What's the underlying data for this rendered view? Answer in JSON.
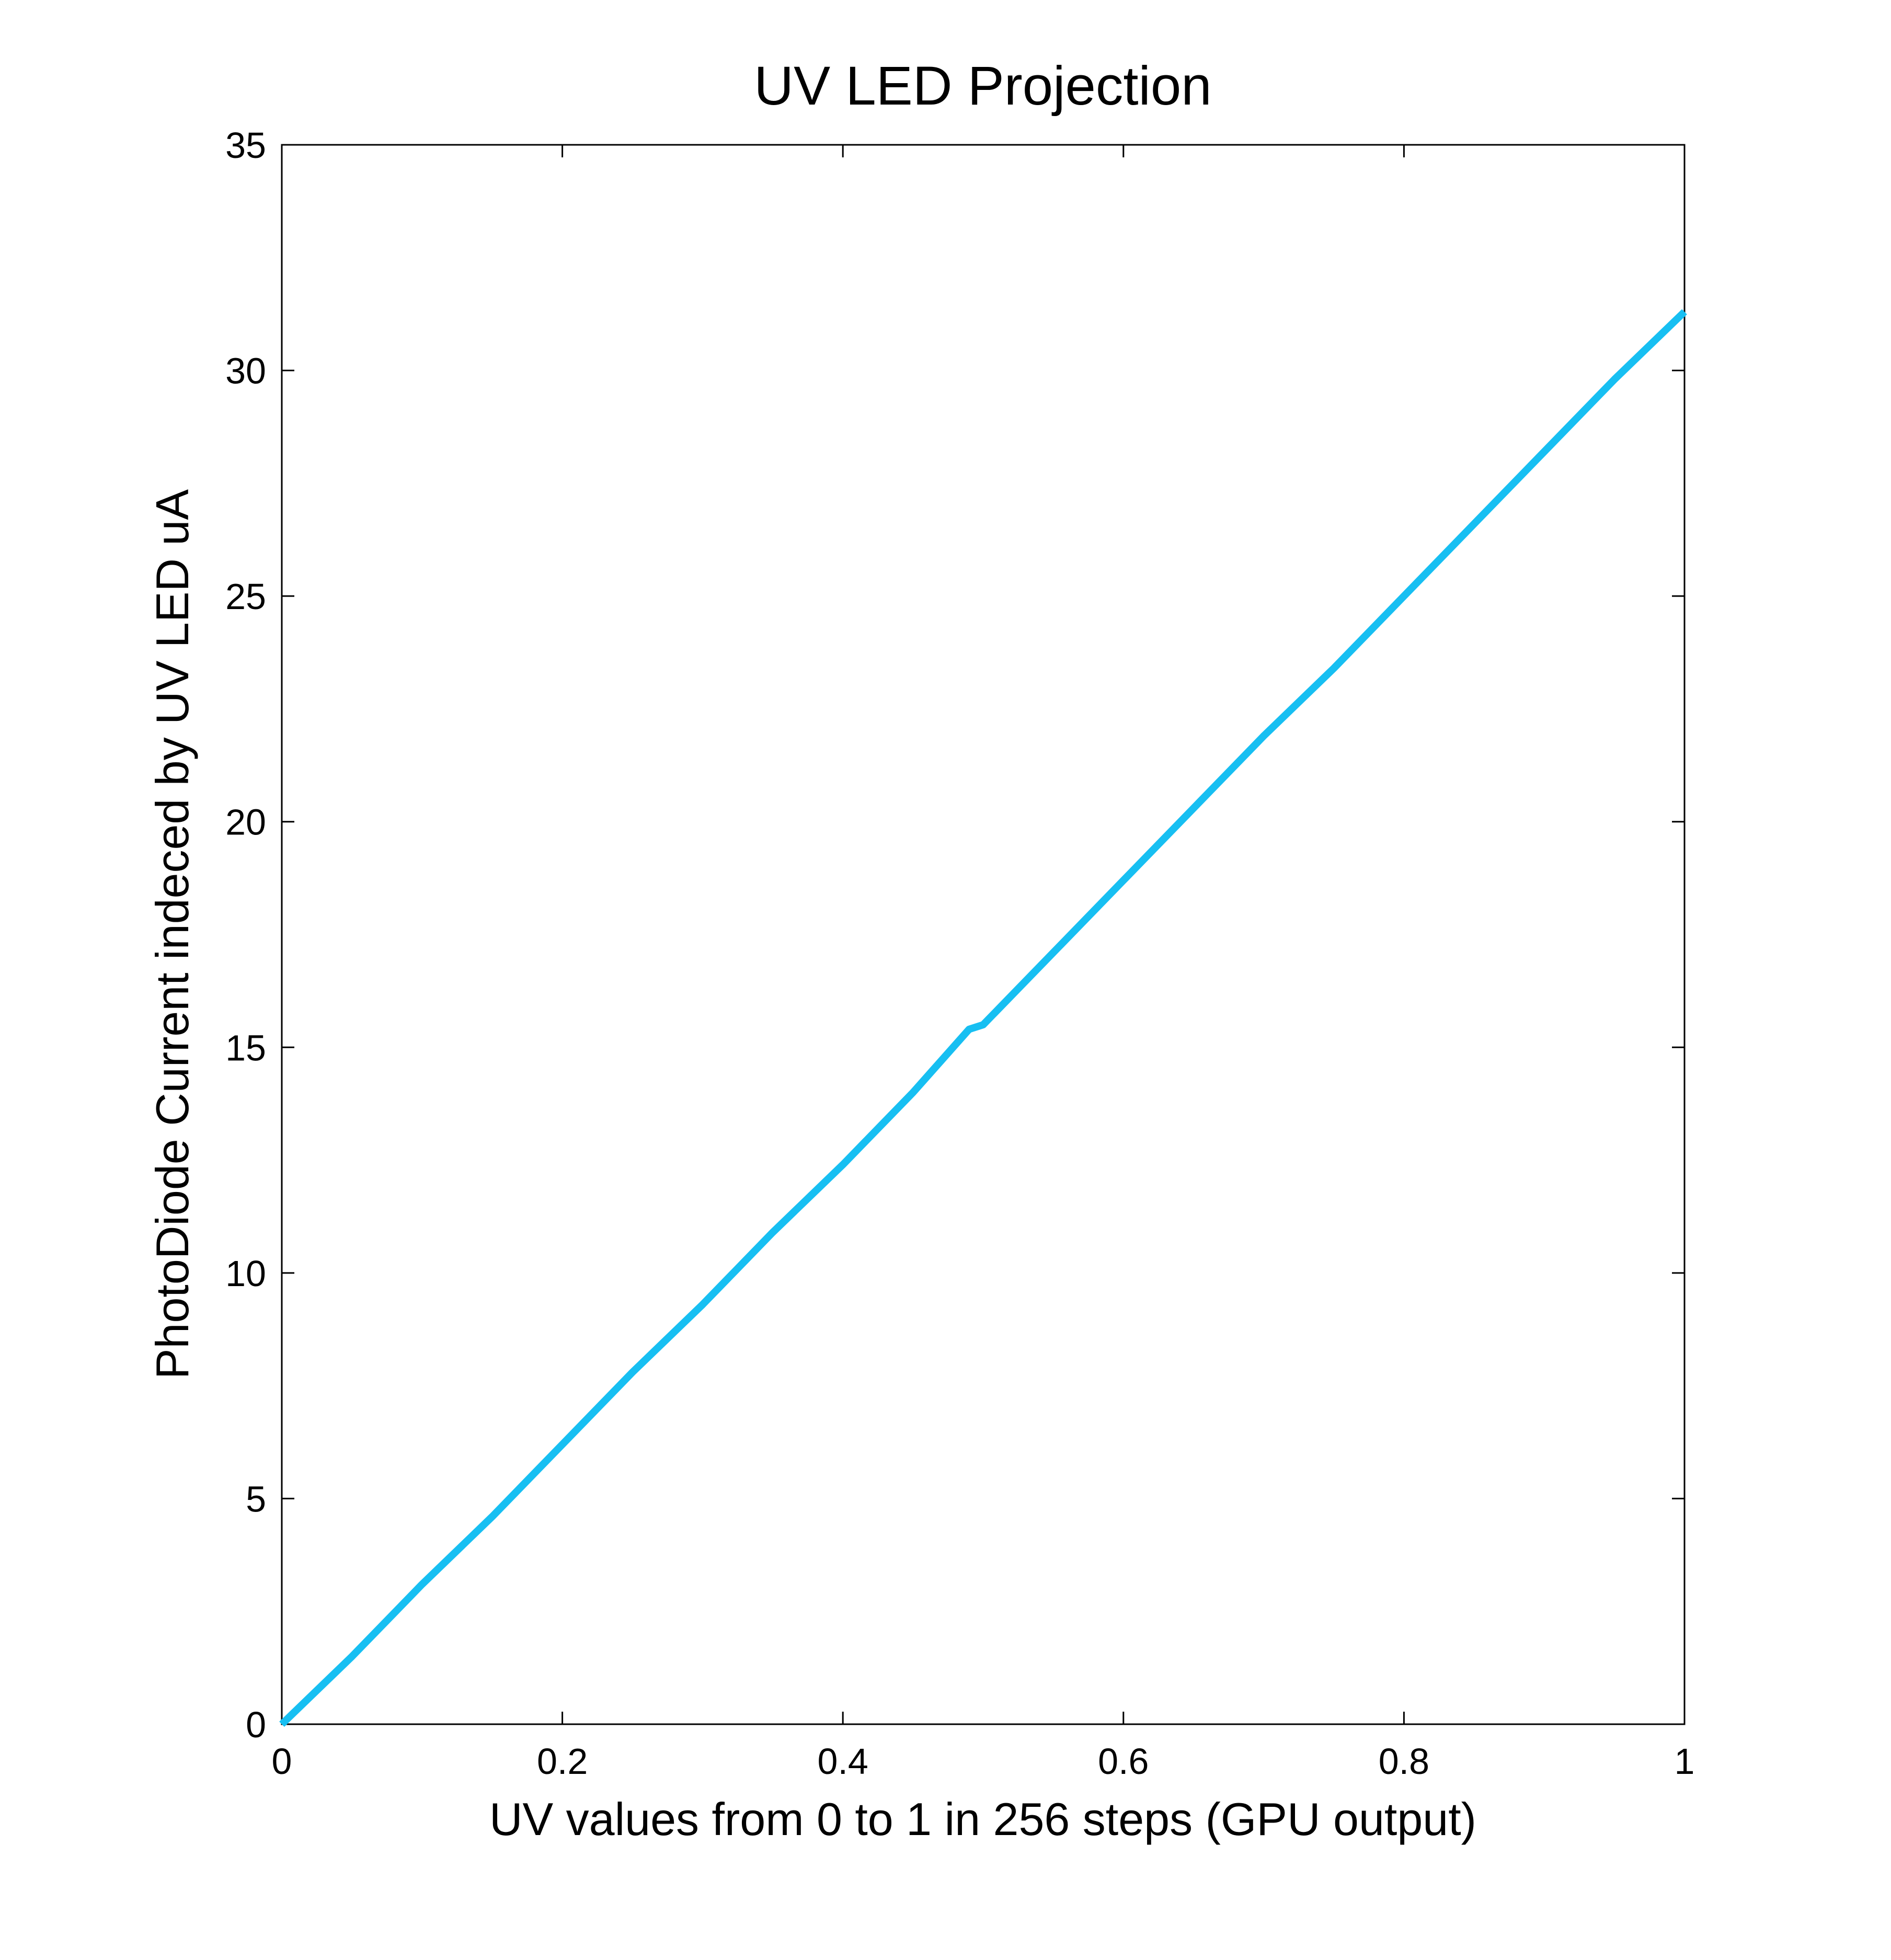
{
  "chart_data": {
    "type": "line",
    "title": "UV LED Projection",
    "x_label": "UV values from 0 to 1 in 256 steps (GPU output)",
    "y_label": "PhotoDiode Current indeced by UV LED uA",
    "x": [
      0,
      0.05,
      0.1,
      0.15,
      0.2,
      0.25,
      0.3,
      0.35,
      0.4,
      0.45,
      0.49,
      0.5,
      0.55,
      0.6,
      0.65,
      0.7,
      0.75,
      0.8,
      0.85,
      0.9,
      0.95,
      1
    ],
    "series": [
      {
        "color": "#17bff2",
        "values": [
          0,
          1.5,
          3.1,
          4.6,
          6.2,
          7.8,
          9.3,
          10.9,
          12.4,
          14.0,
          15.4,
          15.5,
          17.1,
          18.7,
          20.3,
          21.9,
          23.4,
          25.0,
          26.6,
          28.2,
          29.8,
          31.3
        ]
      }
    ],
    "xlim": [
      0,
      1
    ],
    "xticks": [
      0,
      0.2,
      0.4,
      0.6,
      0.8,
      1
    ],
    "ylim": [
      0,
      35
    ],
    "yticks": [
      0,
      5,
      10,
      15,
      20,
      25,
      30,
      35
    ],
    "grid": false
  }
}
